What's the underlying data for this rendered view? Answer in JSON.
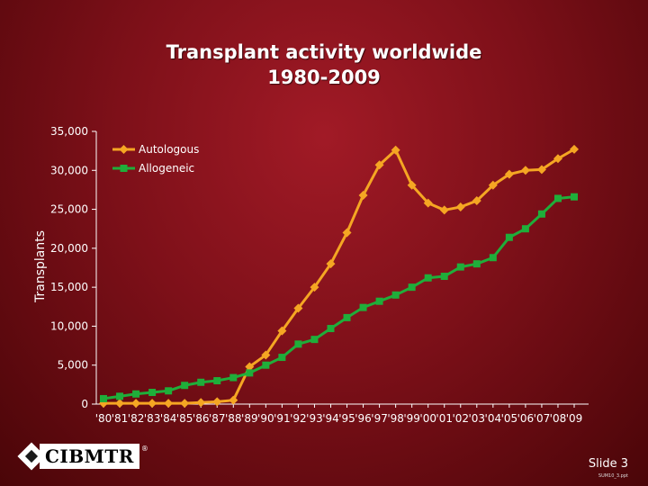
{
  "slide": {
    "title_line1": "Transplant activity worldwide",
    "title_line2": "1980-2009",
    "slide_number": "Slide 3",
    "slide_note": "SUM10_3.ppt",
    "logo_text": "CIBMTR",
    "logo_mark": "®"
  },
  "colors": {
    "autologous": "#f5a623",
    "allogeneic": "#1fae3a",
    "text": "#ffffff"
  },
  "chart_data": {
    "type": "line",
    "title": "Transplant activity worldwide 1980-2009",
    "xlabel": "",
    "ylabel": "Transplants",
    "ylim": [
      0,
      35000
    ],
    "yticks": [
      0,
      5000,
      10000,
      15000,
      20000,
      25000,
      30000,
      35000
    ],
    "ytick_labels": [
      "0",
      "5,000",
      "10,000",
      "15,000",
      "20,000",
      "25,000",
      "30,000",
      "35,000"
    ],
    "categories": [
      "'80",
      "'81",
      "'82",
      "'83",
      "'84",
      "'85",
      "'86",
      "'87",
      "'88",
      "'89",
      "'90",
      "'91",
      "'92",
      "'93",
      "'94",
      "'95",
      "'96",
      "'97",
      "'98",
      "'99",
      "'00",
      "'01",
      "'02",
      "'03",
      "'04",
      "'05",
      "'06",
      "'07",
      "'08",
      "'09"
    ],
    "legend_position": "top-left",
    "series": [
      {
        "name": "Autologous",
        "marker": "diamond",
        "color": "#f5a623",
        "values": [
          100,
          100,
          100,
          100,
          100,
          100,
          200,
          300,
          500,
          4800,
          6300,
          9400,
          12300,
          15000,
          18000,
          22000,
          26800,
          30700,
          32600,
          28100,
          25800,
          24900,
          25300,
          26100,
          28100,
          29500,
          30000,
          30100,
          31500,
          32700
        ]
      },
      {
        "name": "Allogeneic",
        "marker": "square",
        "color": "#1fae3a",
        "values": [
          700,
          1000,
          1300,
          1500,
          1700,
          2400,
          2800,
          3000,
          3400,
          4000,
          5000,
          6000,
          7700,
          8300,
          9700,
          11100,
          12400,
          13200,
          14000,
          15000,
          16200,
          16400,
          17600,
          18000,
          18800,
          21400,
          22500,
          24400,
          26400,
          26600
        ]
      }
    ]
  }
}
